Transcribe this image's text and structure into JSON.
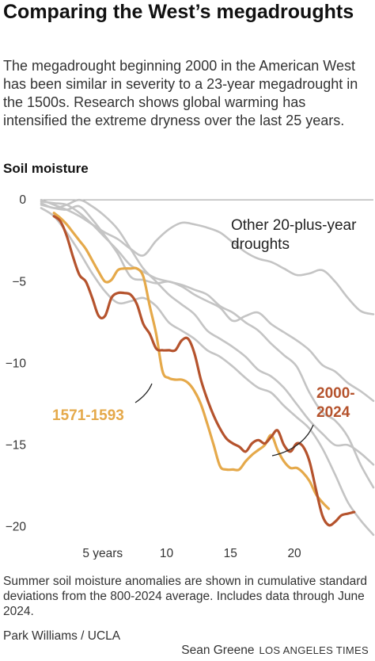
{
  "title": "Comparing the West’s megadroughts",
  "subtitle": "The megadrought beginning 2000 in the American West has been similar in severity to a 23-year megadrought in the 1500s. Research shows global warming has intensified the extreme dryness over the last 25 years.",
  "note": "Summer soil moisture anomalies are shown in cumulative standard deviations from the 800-2024 average. Includes data through June 2024.",
  "source": "Park Williams / UCLA",
  "credit": {
    "author": "Sean Greene",
    "brand": "LOS ANGELES TIMES"
  },
  "colors": {
    "modern": "#b5532d",
    "historic": "#e5a94a",
    "other": "#c4c4c4",
    "axis": "#999999"
  },
  "chart_data": {
    "type": "line",
    "ylabel": "Soil moisture",
    "xlabel": "",
    "xlim": [
      0,
      26
    ],
    "ylim": [
      -20.6,
      0.3
    ],
    "grid": false,
    "x_ticks": [
      5,
      10,
      15,
      20
    ],
    "x_tick_labels": [
      "5 years",
      "10",
      "15",
      "20"
    ],
    "y_ticks": [
      0,
      -5,
      -10,
      -15,
      -20
    ],
    "y_tick_labels": [
      "0",
      "−5",
      "−10",
      "−15",
      "−20"
    ],
    "annotations": {
      "other": "Other 20-plus-year droughts",
      "historic": "1571-1593",
      "modern": "2000-2024"
    },
    "series": [
      {
        "name": "2000-2024",
        "role": "modern",
        "values": [
          [
            1,
            -1.0
          ],
          [
            1.5,
            -1.3
          ],
          [
            2,
            -2.2
          ],
          [
            2.5,
            -3.5
          ],
          [
            3,
            -4.6
          ],
          [
            3.5,
            -5.0
          ],
          [
            4,
            -6.0
          ],
          [
            4.5,
            -7.1
          ],
          [
            5,
            -7.1
          ],
          [
            5.5,
            -6.0
          ],
          [
            6,
            -5.7
          ],
          [
            6.5,
            -5.7
          ],
          [
            7,
            -5.8
          ],
          [
            7.5,
            -6.4
          ],
          [
            8,
            -7.6
          ],
          [
            8.5,
            -8.2
          ],
          [
            9,
            -9.1
          ],
          [
            9.5,
            -9.2
          ],
          [
            10,
            -9.2
          ],
          [
            10.5,
            -9.2
          ],
          [
            11,
            -8.6
          ],
          [
            11.5,
            -8.5
          ],
          [
            12,
            -9.4
          ],
          [
            12.5,
            -11.0
          ],
          [
            13,
            -12.2
          ],
          [
            13.5,
            -13.2
          ],
          [
            14,
            -14.0
          ],
          [
            14.5,
            -14.6
          ],
          [
            15,
            -14.9
          ],
          [
            15.5,
            -15.1
          ],
          [
            16,
            -15.4
          ],
          [
            16.5,
            -14.9
          ],
          [
            17,
            -14.7
          ],
          [
            17.5,
            -14.9
          ],
          [
            18,
            -14.5
          ],
          [
            18.5,
            -14.1
          ],
          [
            19,
            -15.0
          ],
          [
            19.5,
            -15.4
          ],
          [
            20,
            -14.9
          ],
          [
            20.5,
            -15.1
          ],
          [
            21,
            -16.0
          ],
          [
            21.5,
            -17.7
          ],
          [
            22,
            -19.3
          ],
          [
            22.5,
            -19.9
          ],
          [
            23,
            -19.7
          ],
          [
            23.5,
            -19.3
          ],
          [
            24,
            -19.2
          ],
          [
            24.5,
            -19.1
          ]
        ]
      },
      {
        "name": "1571-1593",
        "role": "historic",
        "values": [
          [
            1,
            -0.8
          ],
          [
            1.5,
            -1.1
          ],
          [
            2,
            -1.5
          ],
          [
            2.5,
            -2.0
          ],
          [
            3,
            -2.5
          ],
          [
            3.5,
            -3.0
          ],
          [
            4,
            -3.7
          ],
          [
            4.5,
            -4.4
          ],
          [
            5,
            -5.0
          ],
          [
            5.5,
            -4.9
          ],
          [
            6,
            -4.3
          ],
          [
            6.5,
            -4.2
          ],
          [
            7,
            -4.2
          ],
          [
            7.5,
            -4.2
          ],
          [
            8,
            -4.7
          ],
          [
            8.5,
            -6.5
          ],
          [
            9,
            -8.2
          ],
          [
            9.5,
            -10.5
          ],
          [
            10,
            -10.9
          ],
          [
            10.5,
            -11.0
          ],
          [
            11,
            -11.0
          ],
          [
            11.5,
            -11.2
          ],
          [
            12,
            -11.7
          ],
          [
            12.5,
            -12.5
          ],
          [
            13,
            -13.7
          ],
          [
            13.5,
            -15.0
          ],
          [
            14,
            -16.3
          ],
          [
            14.5,
            -16.5
          ],
          [
            15,
            -16.5
          ],
          [
            15.5,
            -16.5
          ],
          [
            16,
            -16.0
          ],
          [
            16.5,
            -15.6
          ],
          [
            17,
            -15.3
          ],
          [
            17.5,
            -15.0
          ],
          [
            18,
            -14.4
          ],
          [
            18.5,
            -15.3
          ],
          [
            19,
            -16.0
          ],
          [
            19.5,
            -16.4
          ],
          [
            20,
            -16.4
          ],
          [
            20.5,
            -16.7
          ],
          [
            21,
            -17.2
          ],
          [
            21.5,
            -18.0
          ],
          [
            22,
            -18.5
          ],
          [
            22.5,
            -18.9
          ]
        ]
      },
      {
        "role": "other",
        "values": [
          [
            0,
            0.0
          ],
          [
            1,
            -0.3
          ],
          [
            2,
            -0.6
          ],
          [
            3,
            -1.0
          ],
          [
            4,
            -1.5
          ],
          [
            5,
            -2.0
          ],
          [
            6,
            -2.4
          ],
          [
            7,
            -3.0
          ],
          [
            8,
            -3.4
          ],
          [
            9,
            -2.5
          ],
          [
            10,
            -1.8
          ],
          [
            11,
            -1.4
          ],
          [
            12,
            -1.5
          ],
          [
            13,
            -1.7
          ],
          [
            14,
            -2.0
          ],
          [
            15,
            -2.6
          ],
          [
            16,
            -3.2
          ],
          [
            17,
            -3.6
          ],
          [
            18,
            -3.8
          ],
          [
            19,
            -4.2
          ],
          [
            20,
            -4.6
          ],
          [
            21,
            -4.5
          ],
          [
            22,
            -4.3
          ],
          [
            23,
            -5.0
          ],
          [
            24,
            -6.0
          ],
          [
            25,
            -6.8
          ],
          [
            26,
            -7.0
          ]
        ]
      },
      {
        "role": "other",
        "values": [
          [
            0,
            -0.2
          ],
          [
            1,
            -0.5
          ],
          [
            2,
            -0.3
          ],
          [
            3,
            0.0
          ],
          [
            4,
            -0.4
          ],
          [
            5,
            -1.0
          ],
          [
            6,
            -1.8
          ],
          [
            7,
            -3.0
          ],
          [
            8,
            -4.2
          ],
          [
            9,
            -5.0
          ],
          [
            10,
            -5.8
          ],
          [
            11,
            -6.4
          ],
          [
            12,
            -7.0
          ],
          [
            13,
            -8.0
          ],
          [
            14,
            -8.5
          ],
          [
            15,
            -9.0
          ],
          [
            16,
            -9.6
          ],
          [
            17,
            -10.4
          ],
          [
            18,
            -10.8
          ],
          [
            19,
            -11.5
          ],
          [
            20,
            -12.5
          ],
          [
            21,
            -13.5
          ],
          [
            22,
            -14.3
          ],
          [
            23,
            -15.0
          ],
          [
            24,
            -15.0
          ],
          [
            25,
            -15.5
          ],
          [
            26,
            -16.2
          ]
        ]
      },
      {
        "role": "other",
        "values": [
          [
            0,
            -0.1
          ],
          [
            1,
            -0.2
          ],
          [
            2,
            -0.3
          ],
          [
            3,
            -0.8
          ],
          [
            4,
            -1.5
          ],
          [
            5,
            -2.3
          ],
          [
            6,
            -3.1
          ],
          [
            7,
            -4.0
          ],
          [
            8,
            -4.4
          ],
          [
            9,
            -4.8
          ],
          [
            10,
            -5.0
          ],
          [
            11,
            -5.2
          ],
          [
            12,
            -5.5
          ],
          [
            13,
            -5.8
          ],
          [
            14,
            -6.5
          ],
          [
            15,
            -6.9
          ],
          [
            16,
            -7.5
          ],
          [
            17,
            -8.0
          ],
          [
            18,
            -8.8
          ],
          [
            19,
            -9.5
          ],
          [
            20,
            -10.2
          ],
          [
            21,
            -11.8
          ],
          [
            22,
            -13.0
          ],
          [
            23,
            -13.5
          ],
          [
            24,
            -14.5
          ],
          [
            25,
            -16.2
          ],
          [
            26,
            -17.6
          ]
        ]
      },
      {
        "role": "other",
        "values": [
          [
            0,
            -0.5
          ],
          [
            1,
            -1.0
          ],
          [
            2,
            -2.0
          ],
          [
            3,
            -3.2
          ],
          [
            4,
            -4.5
          ],
          [
            5,
            -5.6
          ],
          [
            6,
            -6.3
          ],
          [
            7,
            -6.2
          ],
          [
            8,
            -6.0
          ],
          [
            9,
            -6.5
          ],
          [
            10,
            -7.5
          ],
          [
            11,
            -8.0
          ],
          [
            12,
            -8.5
          ],
          [
            13,
            -9.2
          ],
          [
            14,
            -9.6
          ],
          [
            15,
            -10.2
          ],
          [
            16,
            -10.9
          ],
          [
            17,
            -11.5
          ],
          [
            18,
            -11.8
          ],
          [
            19,
            -12.6
          ],
          [
            20,
            -13.3
          ],
          [
            21,
            -14.0
          ],
          [
            22,
            -15.2
          ],
          [
            23,
            -16.8
          ],
          [
            24,
            -18.5
          ],
          [
            25,
            -19.6
          ],
          [
            26,
            -20.5
          ]
        ]
      },
      {
        "role": "other",
        "values": [
          [
            0,
            -0.3
          ],
          [
            1,
            -0.5
          ],
          [
            2,
            -0.6
          ],
          [
            3,
            -0.4
          ],
          [
            4,
            -1.2
          ],
          [
            5,
            -2.2
          ],
          [
            6,
            -3.3
          ],
          [
            7,
            -4.7
          ],
          [
            8,
            -4.9
          ],
          [
            9,
            -5.1
          ],
          [
            10,
            -5.0
          ],
          [
            11,
            -5.3
          ],
          [
            12,
            -5.8
          ],
          [
            13,
            -6.2
          ],
          [
            14,
            -6.6
          ],
          [
            15,
            -7.4
          ],
          [
            16,
            -7.1
          ],
          [
            17,
            -6.9
          ],
          [
            18,
            -7.6
          ],
          [
            19,
            -8.1
          ],
          [
            20,
            -8.6
          ],
          [
            21,
            -9.2
          ],
          [
            22,
            -10.1
          ],
          [
            23,
            -10.5
          ],
          [
            24,
            -11.2
          ],
          [
            25,
            -11.7
          ],
          [
            26,
            -12.3
          ]
        ]
      }
    ]
  }
}
